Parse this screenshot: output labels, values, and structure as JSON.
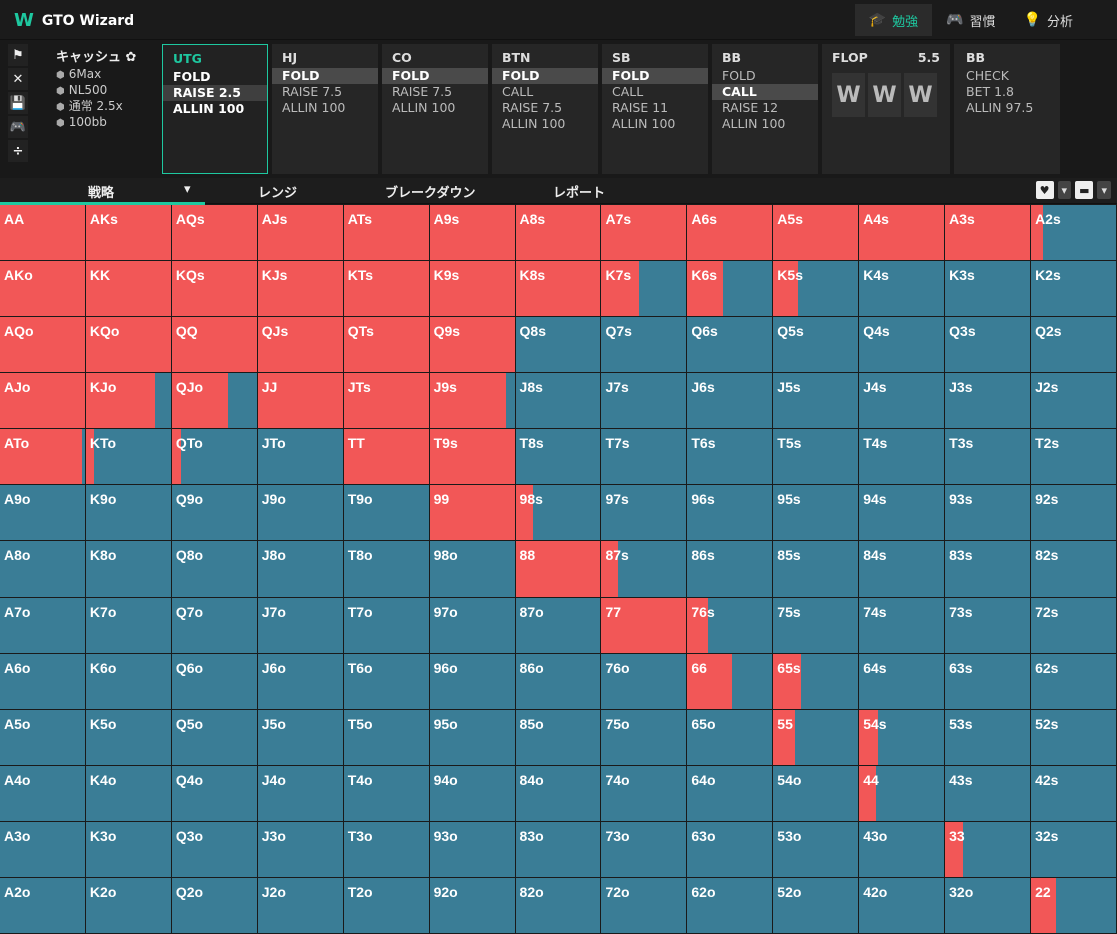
{
  "app": {
    "title": "GTO Wizard",
    "logo_glyph": "W"
  },
  "nav": [
    {
      "label": "勉強",
      "icon": "graduation-cap-icon",
      "glyph": "🎓",
      "active": true
    },
    {
      "label": "習慣",
      "icon": "gamepad-icon",
      "glyph": "🎮",
      "active": false
    },
    {
      "label": "分析",
      "icon": "lightbulb-icon",
      "glyph": "💡",
      "active": false
    }
  ],
  "tools": [
    "⚑",
    "✕",
    "💾",
    "🎮",
    "÷"
  ],
  "cash": {
    "title": "キャッシュ ✿",
    "rows": [
      "6Max",
      "NL500",
      "通常 2.5x",
      "100bb"
    ]
  },
  "positions": [
    {
      "name": "UTG",
      "active": true,
      "actions": [
        {
          "t": "FOLD",
          "sel": false
        },
        {
          "t": "RAISE 2.5",
          "sel": true
        },
        {
          "t": "ALLIN 100",
          "sel": false
        }
      ]
    },
    {
      "name": "HJ",
      "active": false,
      "actions": [
        {
          "t": "FOLD",
          "sel": true
        },
        {
          "t": "RAISE 7.5",
          "sel": false
        },
        {
          "t": "ALLIN 100",
          "sel": false
        }
      ]
    },
    {
      "name": "CO",
      "active": false,
      "actions": [
        {
          "t": "FOLD",
          "sel": true
        },
        {
          "t": "RAISE 7.5",
          "sel": false
        },
        {
          "t": "ALLIN 100",
          "sel": false
        }
      ]
    },
    {
      "name": "BTN",
      "active": false,
      "actions": [
        {
          "t": "FOLD",
          "sel": true
        },
        {
          "t": "CALL",
          "sel": false
        },
        {
          "t": "RAISE 7.5",
          "sel": false
        },
        {
          "t": "ALLIN 100",
          "sel": false
        }
      ]
    },
    {
      "name": "SB",
      "active": false,
      "actions": [
        {
          "t": "FOLD",
          "sel": true
        },
        {
          "t": "CALL",
          "sel": false
        },
        {
          "t": "RAISE 11",
          "sel": false
        },
        {
          "t": "ALLIN 100",
          "sel": false
        }
      ]
    },
    {
      "name": "BB",
      "active": false,
      "actions": [
        {
          "t": "FOLD",
          "sel": false
        },
        {
          "t": "CALL",
          "sel": true
        },
        {
          "t": "RAISE 12",
          "sel": false
        },
        {
          "t": "ALLIN 100",
          "sel": false
        }
      ]
    }
  ],
  "flop": {
    "label": "FLOP",
    "pot": "5.5",
    "cards": [
      "W",
      "W",
      "W"
    ]
  },
  "bb_action": {
    "name": "BB",
    "actions": [
      "CHECK",
      "BET 1.8",
      "ALLIN 97.5"
    ]
  },
  "tabs": [
    "戦略",
    "レンジ",
    "ブレークダウン",
    "レポート"
  ],
  "tab_right": [
    "♥",
    "▾",
    "▬",
    "▾"
  ],
  "colors": {
    "raise": "#f25757",
    "check": "#3a7d96",
    "accent": "#1ec8a0"
  },
  "grid": {
    "hands": [
      [
        "AA",
        "AKs",
        "AQs",
        "AJs",
        "ATs",
        "A9s",
        "A8s",
        "A7s",
        "A6s",
        "A5s",
        "A4s",
        "A3s",
        "A2s"
      ],
      [
        "AKo",
        "KK",
        "KQs",
        "KJs",
        "KTs",
        "K9s",
        "K8s",
        "K7s",
        "K6s",
        "K5s",
        "K4s",
        "K3s",
        "K2s"
      ],
      [
        "AQo",
        "KQo",
        "QQ",
        "QJs",
        "QTs",
        "Q9s",
        "Q8s",
        "Q7s",
        "Q6s",
        "Q5s",
        "Q4s",
        "Q3s",
        "Q2s"
      ],
      [
        "AJo",
        "KJo",
        "QJo",
        "JJ",
        "JTs",
        "J9s",
        "J8s",
        "J7s",
        "J6s",
        "J5s",
        "J4s",
        "J3s",
        "J2s"
      ],
      [
        "ATo",
        "KTo",
        "QTo",
        "JTo",
        "TT",
        "T9s",
        "T8s",
        "T7s",
        "T6s",
        "T5s",
        "T4s",
        "T3s",
        "T2s"
      ],
      [
        "A9o",
        "K9o",
        "Q9o",
        "J9o",
        "T9o",
        "99",
        "98s",
        "97s",
        "96s",
        "95s",
        "94s",
        "93s",
        "92s"
      ],
      [
        "A8o",
        "K8o",
        "Q8o",
        "J8o",
        "T8o",
        "98o",
        "88",
        "87s",
        "86s",
        "85s",
        "84s",
        "83s",
        "82s"
      ],
      [
        "A7o",
        "K7o",
        "Q7o",
        "J7o",
        "T7o",
        "97o",
        "87o",
        "77",
        "76s",
        "75s",
        "74s",
        "73s",
        "72s"
      ],
      [
        "A6o",
        "K6o",
        "Q6o",
        "J6o",
        "T6o",
        "96o",
        "86o",
        "76o",
        "66",
        "65s",
        "64s",
        "63s",
        "62s"
      ],
      [
        "A5o",
        "K5o",
        "Q5o",
        "J5o",
        "T5o",
        "95o",
        "85o",
        "75o",
        "65o",
        "55",
        "54s",
        "53s",
        "52s"
      ],
      [
        "A4o",
        "K4o",
        "Q4o",
        "J4o",
        "T4o",
        "94o",
        "84o",
        "74o",
        "64o",
        "54o",
        "44",
        "43s",
        "42s"
      ],
      [
        "A3o",
        "K3o",
        "Q3o",
        "J3o",
        "T3o",
        "93o",
        "83o",
        "73o",
        "63o",
        "53o",
        "43o",
        "33",
        "32s"
      ],
      [
        "A2o",
        "K2o",
        "Q2o",
        "J2o",
        "T2o",
        "92o",
        "82o",
        "72o",
        "62o",
        "52o",
        "42o",
        "32o",
        "22"
      ]
    ],
    "raise_freq": [
      [
        1,
        1,
        1,
        1,
        1,
        1,
        1,
        1,
        1,
        1,
        1,
        1,
        0.14
      ],
      [
        1,
        1,
        1,
        1,
        1,
        1,
        1,
        0.44,
        0.42,
        0.29,
        0,
        0,
        0
      ],
      [
        1,
        1,
        1,
        1,
        1,
        1,
        0,
        0,
        0,
        0,
        0,
        0,
        0
      ],
      [
        1,
        0.81,
        0.66,
        1,
        1,
        0.9,
        0,
        0,
        0,
        0,
        0,
        0,
        0
      ],
      [
        0.96,
        0.09,
        0.11,
        0,
        1,
        1,
        0,
        0,
        0,
        0,
        0,
        0,
        0
      ],
      [
        0,
        0,
        0,
        0,
        0,
        1,
        0.21,
        0,
        0,
        0,
        0,
        0,
        0
      ],
      [
        0,
        0,
        0,
        0,
        0,
        0,
        1,
        0.2,
        0,
        0,
        0,
        0,
        0
      ],
      [
        0,
        0,
        0,
        0,
        0,
        0,
        0,
        1,
        0.24,
        0,
        0,
        0,
        0
      ],
      [
        0,
        0,
        0,
        0,
        0,
        0,
        0,
        0,
        0.52,
        0.33,
        0,
        0,
        0
      ],
      [
        0,
        0,
        0,
        0,
        0,
        0,
        0,
        0,
        0,
        0.26,
        0.22,
        0,
        0
      ],
      [
        0,
        0,
        0,
        0,
        0,
        0,
        0,
        0,
        0,
        0,
        0.2,
        0,
        0
      ],
      [
        0,
        0,
        0,
        0,
        0,
        0,
        0,
        0,
        0,
        0,
        0,
        0.21,
        0
      ],
      [
        0,
        0,
        0,
        0,
        0,
        0,
        0,
        0,
        0,
        0,
        0,
        0,
        0.29
      ]
    ]
  }
}
